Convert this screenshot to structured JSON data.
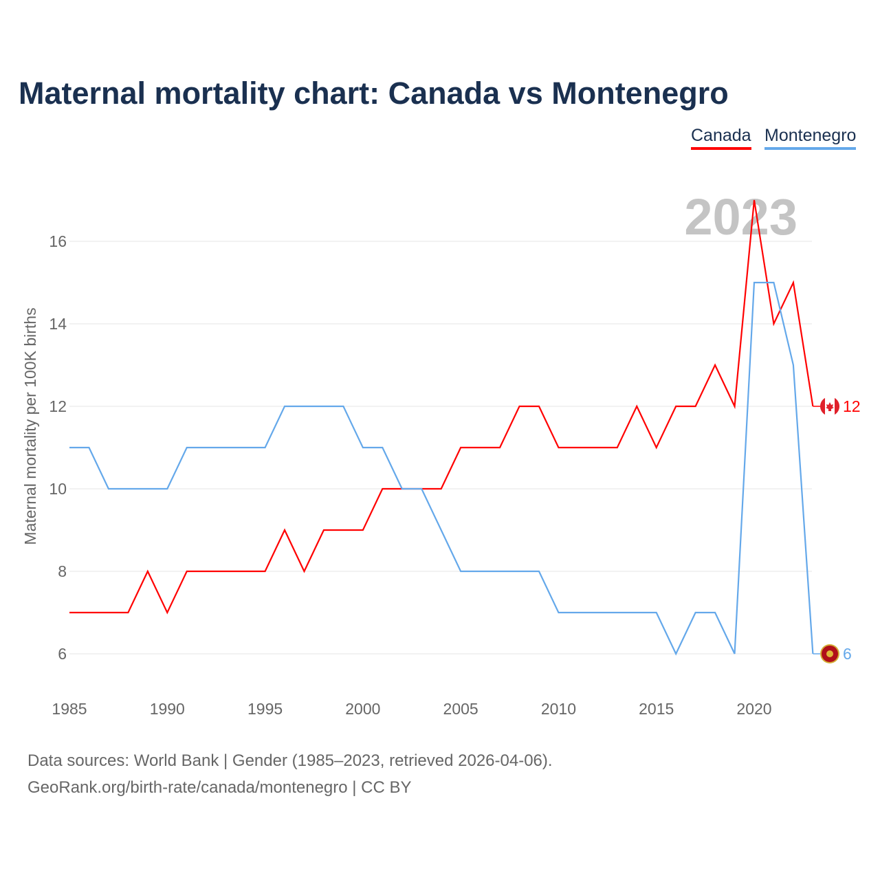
{
  "title": "Maternal mortality chart: Canada vs Montenegro",
  "footer": {
    "line1": "Data sources: World Bank | Gender (1985–2023, retrieved 2026-04-06).",
    "line2": "GeoRank.org/birth-rate/canada/montenegro | CC BY"
  },
  "chart_data": {
    "type": "line",
    "title": "Maternal mortality chart: Canada vs Montenegro",
    "xlabel": "",
    "ylabel": "Maternal mortality per 100K births",
    "year_label": "2023",
    "x": [
      1985,
      1986,
      1987,
      1988,
      1989,
      1990,
      1991,
      1992,
      1993,
      1994,
      1995,
      1996,
      1997,
      1998,
      1999,
      2000,
      2001,
      2002,
      2003,
      2004,
      2005,
      2006,
      2007,
      2008,
      2009,
      2010,
      2011,
      2012,
      2013,
      2014,
      2015,
      2016,
      2017,
      2018,
      2019,
      2020,
      2021,
      2022,
      2023
    ],
    "xticks": [
      "1985",
      "1990",
      "1995",
      "2000",
      "2005",
      "2010",
      "2015",
      "2020"
    ],
    "yticks": [
      "6",
      "8",
      "10",
      "12",
      "14",
      "16"
    ],
    "xlim": [
      1985,
      2023
    ],
    "ylim": [
      5,
      17
    ],
    "grid": true,
    "legend_position": "top-right",
    "series": [
      {
        "name": "Canada",
        "color": "#ff0000",
        "end_label": "12",
        "values": [
          7,
          7,
          7,
          7,
          8,
          7,
          8,
          8,
          8,
          8,
          8,
          9,
          8,
          9,
          9,
          9,
          10,
          10,
          10,
          10,
          11,
          11,
          11,
          12,
          12,
          11,
          11,
          11,
          11,
          12,
          11,
          12,
          12,
          13,
          12,
          17,
          14,
          15,
          12
        ]
      },
      {
        "name": "Montenegro",
        "color": "#64a8ea",
        "end_label": "6",
        "values": [
          11,
          11,
          10,
          10,
          10,
          10,
          11,
          11,
          11,
          11,
          11,
          12,
          12,
          12,
          12,
          11,
          11,
          10,
          10,
          9,
          8,
          8,
          8,
          8,
          8,
          7,
          7,
          7,
          7,
          7,
          7,
          6,
          7,
          7,
          6,
          15,
          15,
          13,
          6
        ]
      }
    ]
  }
}
